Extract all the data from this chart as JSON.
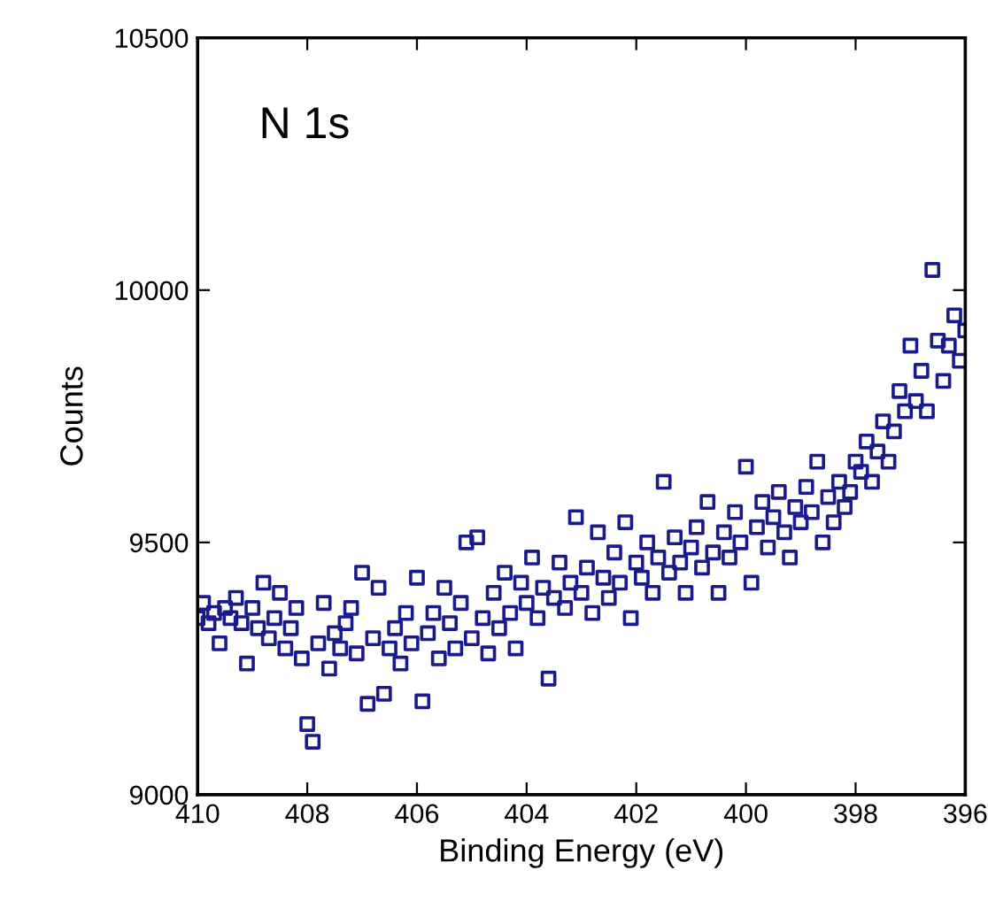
{
  "chart_data": {
    "type": "scatter",
    "xlabel": "Binding Energy (eV)",
    "ylabel": "Counts",
    "annotations": [
      "N 1s"
    ],
    "xlim": [
      410,
      396
    ],
    "xticks": [
      410,
      408,
      406,
      404,
      402,
      400,
      398,
      396
    ],
    "ylim": [
      9000,
      10500
    ],
    "yticks": [
      9000,
      9500,
      10000,
      10500
    ],
    "grid": false,
    "marker": "square",
    "series": [
      {
        "color": "#1a1a8c",
        "x": [
          410.0,
          409.9,
          409.8,
          409.7,
          409.6,
          409.5,
          409.4,
          409.3,
          409.2,
          409.1,
          409.0,
          408.9,
          408.8,
          408.7,
          408.6,
          408.5,
          408.4,
          408.3,
          408.2,
          408.1,
          408.0,
          407.9,
          407.8,
          407.7,
          407.6,
          407.5,
          407.4,
          407.3,
          407.2,
          407.1,
          407.0,
          406.9,
          406.8,
          406.7,
          406.6,
          406.5,
          406.4,
          406.3,
          406.2,
          406.1,
          406.0,
          405.9,
          405.8,
          405.7,
          405.6,
          405.5,
          405.4,
          405.3,
          405.2,
          405.1,
          405.0,
          404.9,
          404.8,
          404.7,
          404.6,
          404.5,
          404.4,
          404.3,
          404.2,
          404.1,
          404.0,
          403.9,
          403.8,
          403.7,
          403.6,
          403.5,
          403.4,
          403.3,
          403.2,
          403.1,
          403.0,
          402.9,
          402.8,
          402.7,
          402.6,
          402.5,
          402.4,
          402.3,
          402.2,
          402.1,
          402.0,
          401.9,
          401.8,
          401.7,
          401.6,
          401.5,
          401.4,
          401.3,
          401.2,
          401.1,
          401.0,
          400.9,
          400.8,
          400.7,
          400.6,
          400.5,
          400.4,
          400.3,
          400.2,
          400.1,
          400.0,
          399.9,
          399.8,
          399.7,
          399.6,
          399.5,
          399.4,
          399.3,
          399.2,
          399.1,
          399.0,
          398.9,
          398.8,
          398.7,
          398.6,
          398.5,
          398.4,
          398.3,
          398.2,
          398.1,
          398.0,
          397.9,
          397.8,
          397.7,
          397.6,
          397.5,
          397.4,
          397.3,
          397.2,
          397.1,
          397.0,
          396.9,
          396.8,
          396.7,
          396.6,
          396.5,
          396.4,
          396.3,
          396.2,
          396.1,
          396.0
        ],
        "values": [
          9350,
          9380,
          9340,
          9360,
          9300,
          9370,
          9350,
          9390,
          9340,
          9260,
          9370,
          9330,
          9420,
          9310,
          9350,
          9400,
          9290,
          9330,
          9370,
          9270,
          9140,
          9105,
          9300,
          9380,
          9250,
          9320,
          9290,
          9340,
          9370,
          9280,
          9440,
          9180,
          9310,
          9410,
          9200,
          9290,
          9330,
          9260,
          9360,
          9300,
          9430,
          9185,
          9320,
          9360,
          9270,
          9410,
          9340,
          9290,
          9380,
          9500,
          9310,
          9510,
          9350,
          9280,
          9400,
          9330,
          9440,
          9360,
          9290,
          9420,
          9380,
          9470,
          9350,
          9410,
          9230,
          9390,
          9460,
          9370,
          9420,
          9550,
          9400,
          9450,
          9360,
          9520,
          9430,
          9390,
          9480,
          9420,
          9540,
          9350,
          9460,
          9430,
          9500,
          9400,
          9470,
          9620,
          9440,
          9510,
          9460,
          9400,
          9490,
          9530,
          9450,
          9580,
          9480,
          9400,
          9520,
          9470,
          9560,
          9500,
          9650,
          9420,
          9530,
          9580,
          9490,
          9550,
          9600,
          9520,
          9470,
          9570,
          9540,
          9610,
          9560,
          9660,
          9500,
          9590,
          9540,
          9620,
          9570,
          9600,
          9660,
          9640,
          9700,
          9620,
          9680,
          9740,
          9660,
          9720,
          9800,
          9760,
          9890,
          9780,
          9840,
          9760,
          10040,
          9900,
          9820,
          9890,
          9950,
          9860,
          9920
        ]
      }
    ]
  }
}
